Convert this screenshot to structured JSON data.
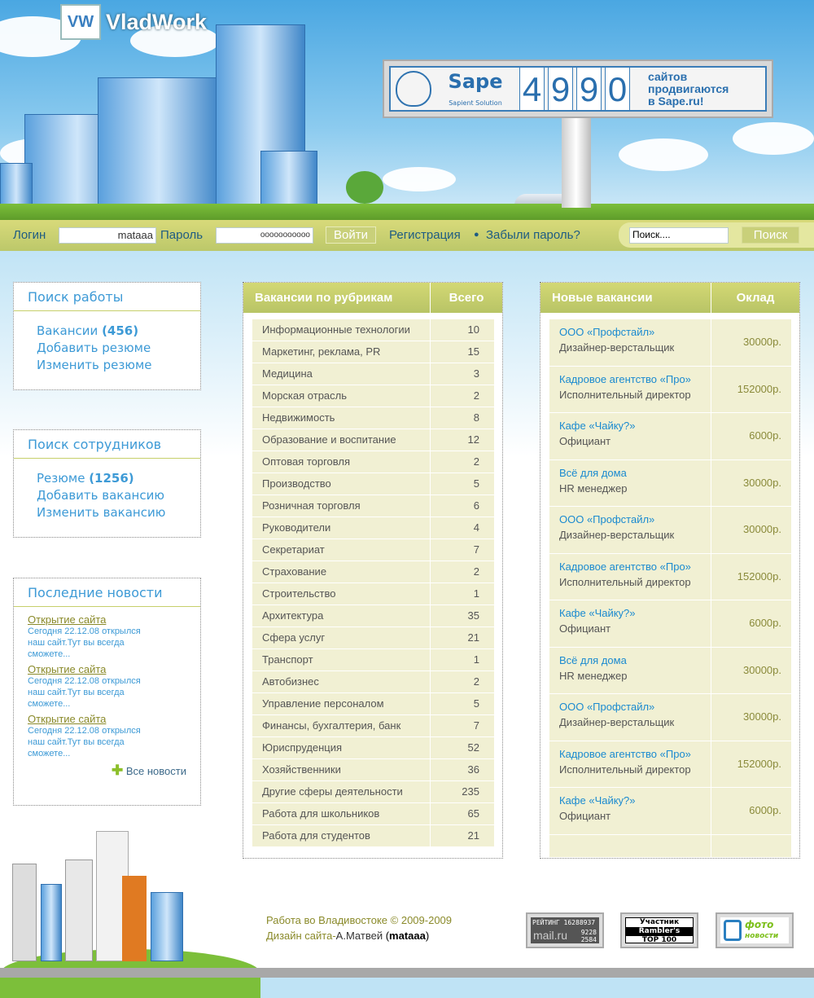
{
  "logo": {
    "mark": "VW",
    "name": "VladWork"
  },
  "ad": {
    "brand": "Sape",
    "tagline": "Sapient Solution",
    "digits": [
      "4",
      "9",
      "9",
      "0"
    ],
    "text": "сайтов\nпродвигаются\nв Sape.ru!"
  },
  "nav": {
    "login_label": "Логин",
    "login_value": "mataaa",
    "password_label": "Пароль",
    "password_value": "ooooooooooo",
    "login_button": "Войти",
    "register": "Регистрация",
    "forgot": "Забыли пароль?",
    "search_placeholder": "Поиск....",
    "search_button": "Поиск"
  },
  "job_search": {
    "title": "Поиск работы",
    "vacancies": "Вакансии",
    "vacancies_count": "(456)",
    "add_resume": "Добавить резюме",
    "edit_resume": "Изменить резюме"
  },
  "staff_search": {
    "title": "Поиск сотрудников",
    "resumes": "Резюме",
    "resumes_count": "(1256)",
    "add_vacancy": "Добавить вакансию",
    "edit_vacancy": "Изменить вакансию"
  },
  "news": {
    "title": "Последние новости",
    "items": [
      {
        "title": "Открытие сайта",
        "text": "Сегодня 22.12.08 открылся наш сайт.Тут вы всегда сможете..."
      },
      {
        "title": "Открытие сайта",
        "text": "Сегодня 22.12.08 открылся наш сайт.Тут вы всегда сможете..."
      },
      {
        "title": "Открытие сайта",
        "text": "Сегодня 22.12.08 открылся наш сайт.Тут вы всегда сможете..."
      }
    ],
    "all": "Все новости"
  },
  "categories": {
    "header": "Вакансии по рубрикам",
    "count_header": "Всего",
    "rows": [
      [
        "Информационные технологии",
        "10"
      ],
      [
        "Маркетинг, реклама, PR",
        "15"
      ],
      [
        "Медицина",
        "3"
      ],
      [
        "Морская отрасль",
        "2"
      ],
      [
        "Недвижимость",
        "8"
      ],
      [
        "Образование и воспитание",
        "12"
      ],
      [
        "Оптовая торговля",
        "2"
      ],
      [
        "Производство",
        "5"
      ],
      [
        "Розничная торговля",
        "6"
      ],
      [
        "Руководители",
        "4"
      ],
      [
        "Секретариат",
        "7"
      ],
      [
        "Страхование",
        "2"
      ],
      [
        "Строительство",
        "1"
      ],
      [
        "Архитектура",
        "35"
      ],
      [
        "Сфера услуг",
        "21"
      ],
      [
        "Транспорт",
        "1"
      ],
      [
        "Автобизнес",
        "2"
      ],
      [
        "Управление персоналом",
        "5"
      ],
      [
        "Финансы, бухгалтерия, банк",
        "7"
      ],
      [
        "Юриспруденция",
        "52"
      ],
      [
        "Хозяйственники",
        "36"
      ],
      [
        "Другие сферы деятельности",
        "235"
      ],
      [
        "Работа для школьников",
        "65"
      ],
      [
        "Работа для студентов",
        "21"
      ]
    ]
  },
  "new_vacancies": {
    "header": "Новые вакансии",
    "salary_header": "Оклад",
    "rows": [
      {
        "company": "ООО «Профстайл»",
        "position": "Дизайнер-верстальщик",
        "salary": "30000р."
      },
      {
        "company": "Кадровое агентство «Про»",
        "position": "Исполнительный директор",
        "salary": "152000р."
      },
      {
        "company": "Кафе «Чайку?»",
        "position": "Официант",
        "salary": "6000р."
      },
      {
        "company": "Всё для дома",
        "position": "HR менеджер",
        "salary": "30000р."
      },
      {
        "company": "ООО «Профстайл»",
        "position": "Дизайнер-верстальщик",
        "salary": "30000р."
      },
      {
        "company": "Кадровое агентство «Про»",
        "position": "Исполнительный директор",
        "salary": "152000р."
      },
      {
        "company": "Кафе «Чайку?»",
        "position": "Официант",
        "salary": "6000р."
      },
      {
        "company": "Всё для дома",
        "position": "HR менеджер",
        "salary": "30000р."
      },
      {
        "company": "ООО «Профстайл»",
        "position": "Дизайнер-верстальщик",
        "salary": "30000р."
      },
      {
        "company": "Кадровое агентство «Про»",
        "position": "Исполнительный директор",
        "salary": "152000р."
      },
      {
        "company": "Кафе «Чайку?»",
        "position": "Официант",
        "salary": "6000р."
      }
    ]
  },
  "footer": {
    "copyright": "Работа во Владивостоке © 2009-2009",
    "design": "Дизайн сайта-",
    "author": "А.Матвей",
    "nick_open": " (",
    "nick": "mataaa",
    "nick_close": ")"
  },
  "counters": {
    "mailru": {
      "label": "РЕЙТИНГ",
      "total": "16288937",
      "brand": "mail.ru",
      "n1": "9228",
      "n2": "2584"
    },
    "rambler": {
      "l1": "Участник",
      "l2": "Rambler's",
      "l3": "TOP 100"
    },
    "foto": {
      "l1": "фото",
      "l2": "новости"
    }
  }
}
